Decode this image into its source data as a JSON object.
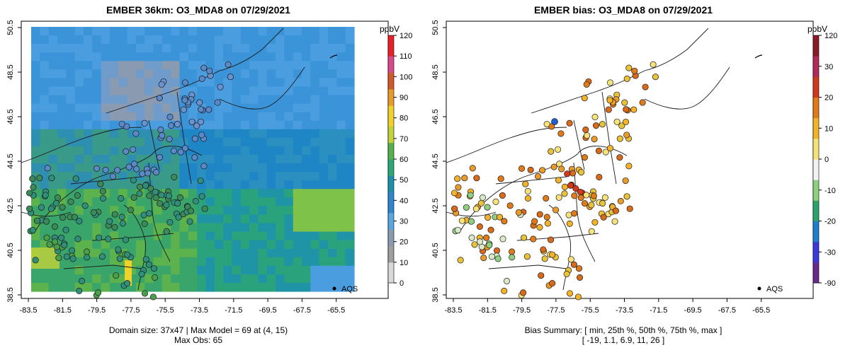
{
  "left_panel": {
    "title": "EMBER 36km: O3_MDA8 on 07/29/2021",
    "x_ticks": [
      "-83.5",
      "-81.5",
      "-79.5",
      "-77.5",
      "-75.5",
      "-73.5",
      "-71.5",
      "-69.5",
      "-67.5",
      "-65.5"
    ],
    "y_ticks": [
      "38.5",
      "40.5",
      "42.5",
      "44.5",
      "46.5",
      "48.5",
      "50.5"
    ],
    "colorbar_unit": "ppbV",
    "colorbar_ticks": [
      "0",
      "10",
      "20",
      "30",
      "40",
      "50",
      "60",
      "70",
      "80",
      "90",
      "100",
      "110",
      "120"
    ],
    "legend_label": "AQS",
    "caption_line1": "Domain size: 37x47 | Max Model = 69 at (4, 15)",
    "caption_line2": "Max Obs: 65"
  },
  "right_panel": {
    "title": "EMBER bias: O3_MDA8 on 07/29/2021",
    "x_ticks": [
      "-83.5",
      "-81.5",
      "-79.5",
      "-77.5",
      "-75.5",
      "-73.5",
      "-71.5",
      "-69.5",
      "-67.5",
      "-65.5"
    ],
    "y_ticks": [
      "38.5",
      "40.5",
      "42.5",
      "44.5",
      "46.5",
      "48.5",
      "50.5"
    ],
    "colorbar_unit": "ppbV",
    "colorbar_ticks": [
      "120",
      "30",
      "20",
      "10",
      "0",
      "-10",
      "-20",
      "-30",
      "-90"
    ],
    "legend_label": "AQS",
    "caption_line1": "Bias Summary: [ min, 25th %, 50th %, 75th %, max ]",
    "caption_line2": "[ -19,   1.1,   6.9,   11,   26 ]"
  },
  "colors": {
    "conc_scale": [
      "#d8d8d8",
      "#9e9e9e",
      "#8a9ab0",
      "#5aa6e0",
      "#2f86cf",
      "#1f8fb0",
      "#2fa57a",
      "#55b14c",
      "#c3d23b",
      "#f0d22a",
      "#e89a2a",
      "#d05a2a",
      "#d84a8a",
      "#e8202a"
    ],
    "bias_scale": [
      "#6a2a8a",
      "#3a3adf",
      "#1f7fcf",
      "#2aa56a",
      "#8fcf7f",
      "#f2f2f2",
      "#f6e27a",
      "#f2b22a",
      "#e07a1a",
      "#d23a1a",
      "#b02a5a",
      "#8a1a2a"
    ]
  }
}
